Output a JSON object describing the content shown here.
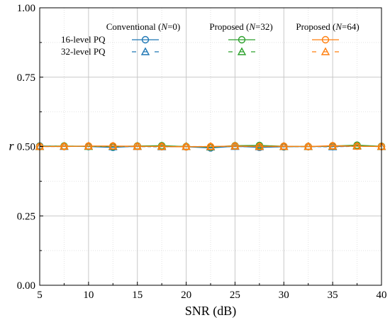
{
  "chart_data": {
    "type": "line",
    "xlabel": "SNR (dB)",
    "ylabel": "r",
    "xlim": [
      5,
      40
    ],
    "ylim": [
      0.0,
      1.0
    ],
    "xticks": [
      5,
      10,
      15,
      20,
      25,
      30,
      35,
      40
    ],
    "yticks": [
      "0.00",
      "0.25",
      "0.50",
      "0.75",
      "1.00"
    ],
    "yticks_values": [
      0.0,
      0.25,
      0.5,
      0.75,
      1.0
    ],
    "grid": true,
    "legend_position": "top",
    "legend": {
      "column_headers": [
        {
          "name": "Conventional",
          "param": "N",
          "value": "0"
        },
        {
          "name": "Proposed",
          "param": "N",
          "value": "32"
        },
        {
          "name": "Proposed",
          "param": "N",
          "value": "64"
        }
      ],
      "row_labels": [
        "16-level PQ",
        "32-level PQ"
      ]
    },
    "x": [
      5,
      7.5,
      10,
      12.5,
      15,
      17.5,
      20,
      22.5,
      25,
      27.5,
      30,
      32.5,
      35,
      37.5,
      40
    ],
    "series": [
      {
        "method": 0,
        "quant": 0,
        "color": "#1f77b4",
        "marker": "circle",
        "dash": "solid",
        "values": [
          0.502,
          0.501,
          0.5,
          0.497,
          0.501,
          0.5,
          0.499,
          0.495,
          0.501,
          0.497,
          0.499,
          0.5,
          0.5,
          0.502,
          0.5
        ]
      },
      {
        "method": 0,
        "quant": 1,
        "color": "#1f77b4",
        "marker": "triangle",
        "dash": "dashed",
        "values": [
          0.5,
          0.5,
          0.501,
          0.499,
          0.5,
          0.499,
          0.5,
          0.498,
          0.5,
          0.499,
          0.5,
          0.5,
          0.499,
          0.501,
          0.5
        ]
      },
      {
        "method": 1,
        "quant": 0,
        "color": "#2ca02c",
        "marker": "circle",
        "dash": "solid",
        "values": [
          0.501,
          0.502,
          0.501,
          0.5,
          0.502,
          0.503,
          0.5,
          0.498,
          0.503,
          0.504,
          0.501,
          0.5,
          0.502,
          0.505,
          0.501
        ]
      },
      {
        "method": 1,
        "quant": 1,
        "color": "#2ca02c",
        "marker": "triangle",
        "dash": "dashed",
        "values": [
          0.5,
          0.501,
          0.5,
          0.501,
          0.501,
          0.502,
          0.5,
          0.499,
          0.502,
          0.502,
          0.5,
          0.5,
          0.501,
          0.503,
          0.5
        ]
      },
      {
        "method": 2,
        "quant": 0,
        "color": "#ff7f0e",
        "marker": "circle",
        "dash": "solid",
        "values": [
          0.5,
          0.5,
          0.502,
          0.502,
          0.501,
          0.5,
          0.499,
          0.5,
          0.502,
          0.5,
          0.501,
          0.5,
          0.503,
          0.501,
          0.5
        ]
      },
      {
        "method": 2,
        "quant": 1,
        "color": "#ff7f0e",
        "marker": "triangle",
        "dash": "dashed",
        "values": [
          0.5,
          0.501,
          0.501,
          0.501,
          0.5,
          0.5,
          0.5,
          0.5,
          0.501,
          0.5,
          0.5,
          0.5,
          0.501,
          0.501,
          0.5
        ]
      }
    ]
  }
}
